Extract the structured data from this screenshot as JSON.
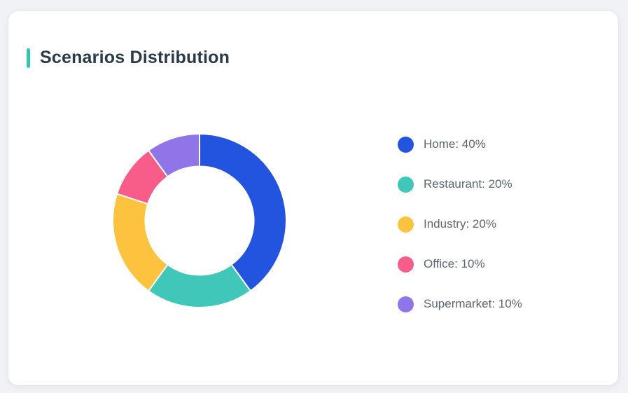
{
  "page": {
    "background_color": "#f0f2f5"
  },
  "card": {
    "title": "Scenarios Distribution",
    "accent_color": "#36c5b5",
    "title_color": "#2b3a4a"
  },
  "chart_data": {
    "type": "pie",
    "subtype": "donut",
    "title": "Scenarios Distribution",
    "categories": [
      "Home",
      "Restaurant",
      "Industry",
      "Office",
      "Supermarket"
    ],
    "values": [
      40,
      20,
      20,
      10,
      10
    ],
    "unit": "%",
    "colors": [
      "#2254e0",
      "#41c7ba",
      "#fdc33e",
      "#f85c88",
      "#8f75e8"
    ],
    "legend_labels": [
      "Home: 40%",
      "Restaurant: 20%",
      "Industry: 20%",
      "Office: 10%",
      "Supermarket: 10%"
    ],
    "legend_position": "right",
    "start_angle_deg": 0,
    "direction": "clockwise",
    "inner_radius_ratio": 0.625,
    "slice_gap_stroke": "#ffffff"
  }
}
